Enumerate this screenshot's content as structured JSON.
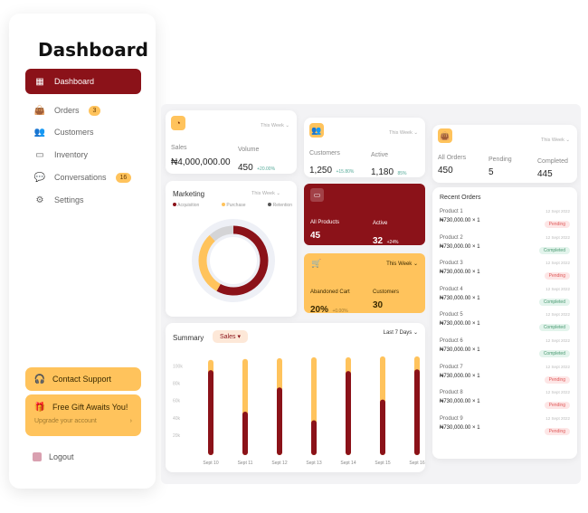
{
  "sidebar": {
    "title": "Dashboard",
    "items": [
      {
        "label": "Dashboard",
        "icon": "grid-icon",
        "active": true
      },
      {
        "label": "Orders",
        "icon": "bag-icon",
        "badge": "3"
      },
      {
        "label": "Customers",
        "icon": "users-icon"
      },
      {
        "label": "Inventory",
        "icon": "folder-icon"
      },
      {
        "label": "Conversations",
        "icon": "chat-icon",
        "badge": "16"
      },
      {
        "label": "Settings",
        "icon": "gear-icon"
      }
    ],
    "support": "Contact Support",
    "gift_title": "Free Gift Awaits You!",
    "gift_sub": "Upgrade your account",
    "logout": "Logout"
  },
  "sales_card": {
    "period": "This Week",
    "sales_label": "Sales",
    "sales_value": "₦4,000,000.00",
    "volume_label": "Volume",
    "volume_value": "450",
    "volume_change": "+20.00%"
  },
  "customers_card": {
    "period": "This Week",
    "customers_label": "Customers",
    "customers_value": "1,250",
    "customers_change": "+15.80%",
    "active_label": "Active",
    "active_value": "1,180",
    "active_pct": "85%"
  },
  "orders_card": {
    "period": "This Week",
    "all_label": "All Orders",
    "all_value": "450",
    "pending_label": "Pending",
    "pending_value": "5",
    "completed_label": "Completed",
    "completed_value": "445"
  },
  "marketing": {
    "title": "Marketing",
    "period": "This Week",
    "legend": [
      {
        "name": "Acquisition",
        "color": "#8b1219"
      },
      {
        "name": "Purchase",
        "color": "#ffc35c"
      },
      {
        "name": "Retention",
        "color": "#555555"
      }
    ],
    "donut": [
      {
        "name": "Acquisition",
        "value": 58
      },
      {
        "name": "Purchase",
        "value": 30
      },
      {
        "name": "Retention",
        "value": 12
      }
    ]
  },
  "products_card": {
    "all_label": "All Products",
    "all_value": "45",
    "active_label": "Active",
    "active_value": "32",
    "active_change": "+24%"
  },
  "cart_card": {
    "period": "This Week",
    "cart_label": "Abandoned Cart",
    "cart_value": "20%",
    "cart_change": "+0.00%",
    "customers_label": "Customers",
    "customers_value": "30"
  },
  "recent_orders": {
    "title": "Recent Orders",
    "items": [
      {
        "name": "Product 1",
        "price": "₦730,000.00 × 1",
        "date": "12 Sept 2022",
        "status": "Pending"
      },
      {
        "name": "Product 2",
        "price": "₦730,000.00 × 1",
        "date": "12 Sept 2022",
        "status": "Completed"
      },
      {
        "name": "Product 3",
        "price": "₦730,000.00 × 1",
        "date": "12 Sept 2022",
        "status": "Pending"
      },
      {
        "name": "Product 4",
        "price": "₦730,000.00 × 1",
        "date": "12 Sept 2022",
        "status": "Completed"
      },
      {
        "name": "Product 5",
        "price": "₦730,000.00 × 1",
        "date": "12 Sept 2022",
        "status": "Completed"
      },
      {
        "name": "Product 6",
        "price": "₦730,000.00 × 1",
        "date": "12 Sept 2022",
        "status": "Completed"
      },
      {
        "name": "Product 7",
        "price": "₦730,000.00 × 1",
        "date": "12 Sept 2022",
        "status": "Pending"
      },
      {
        "name": "Product 8",
        "price": "₦730,000.00 × 1",
        "date": "12 Sept 2022",
        "status": "Pending"
      },
      {
        "name": "Product 9",
        "price": "₦730,000.00 × 1",
        "date": "12 Sept 2022",
        "status": "Pending"
      }
    ]
  },
  "summary": {
    "title": "Summary",
    "metric": "Sales",
    "range": "Last 7 Days"
  },
  "chart_data": {
    "type": "bar",
    "categories": [
      "Sept 10",
      "Sept 11",
      "Sept 12",
      "Sept 13",
      "Sept 14",
      "Sept 15",
      "Sept 16"
    ],
    "yticks": [
      "20k",
      "40k",
      "60k",
      "80k",
      "100k"
    ],
    "ylim": [
      0,
      110000
    ],
    "series": [
      {
        "color": "#8b1219",
        "values": [
          92000,
          44000,
          72000,
          34000,
          91000,
          58000,
          93000
        ]
      },
      {
        "color": "#ffc35c",
        "values": [
          104000,
          105000,
          106000,
          107000,
          107000,
          108000,
          108000
        ]
      }
    ]
  },
  "colors": {
    "primary": "#8b1219",
    "accent": "#ffc35c"
  }
}
